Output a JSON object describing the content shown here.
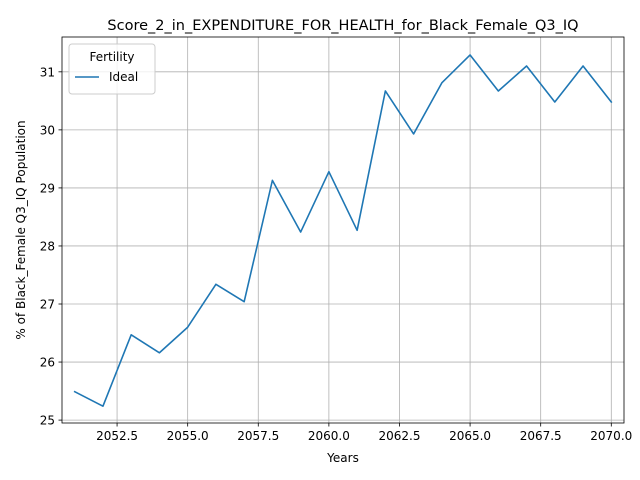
{
  "chart_data": {
    "type": "line",
    "title": "Score_2_in_EXPENDITURE_FOR_HEALTH_for_Black_Female_Q3_IQ",
    "xlabel": "Years",
    "ylabel": "% of Black_Female Q3_IQ Population",
    "xlim": [
      2050.55,
      2070.45
    ],
    "ylim": [
      24.95,
      31.6
    ],
    "xticks": [
      2052.5,
      2055.0,
      2057.5,
      2060.0,
      2062.5,
      2065.0,
      2067.5,
      2070.0
    ],
    "xtick_labels": [
      "2052.5",
      "2055.0",
      "2057.5",
      "2060.0",
      "2062.5",
      "2065.0",
      "2067.5",
      "2070.0"
    ],
    "yticks": [
      25,
      26,
      27,
      28,
      29,
      30,
      31
    ],
    "ytick_labels": [
      "25",
      "26",
      "27",
      "28",
      "29",
      "30",
      "31"
    ],
    "grid": true,
    "legend": {
      "title": "Fertility",
      "position": "top-left"
    },
    "series": [
      {
        "name": "Ideal",
        "color": "#1f77b4",
        "x": [
          2051,
          2052,
          2053,
          2054,
          2055,
          2056,
          2057,
          2058,
          2059,
          2060,
          2061,
          2062,
          2063,
          2064,
          2065,
          2066,
          2067,
          2068,
          2069,
          2070
        ],
        "y": [
          25.49,
          25.24,
          26.47,
          26.16,
          26.6,
          27.34,
          27.04,
          29.13,
          28.24,
          29.28,
          28.27,
          30.67,
          29.93,
          30.81,
          31.29,
          30.67,
          31.1,
          30.48,
          31.1,
          30.48
        ]
      }
    ]
  }
}
